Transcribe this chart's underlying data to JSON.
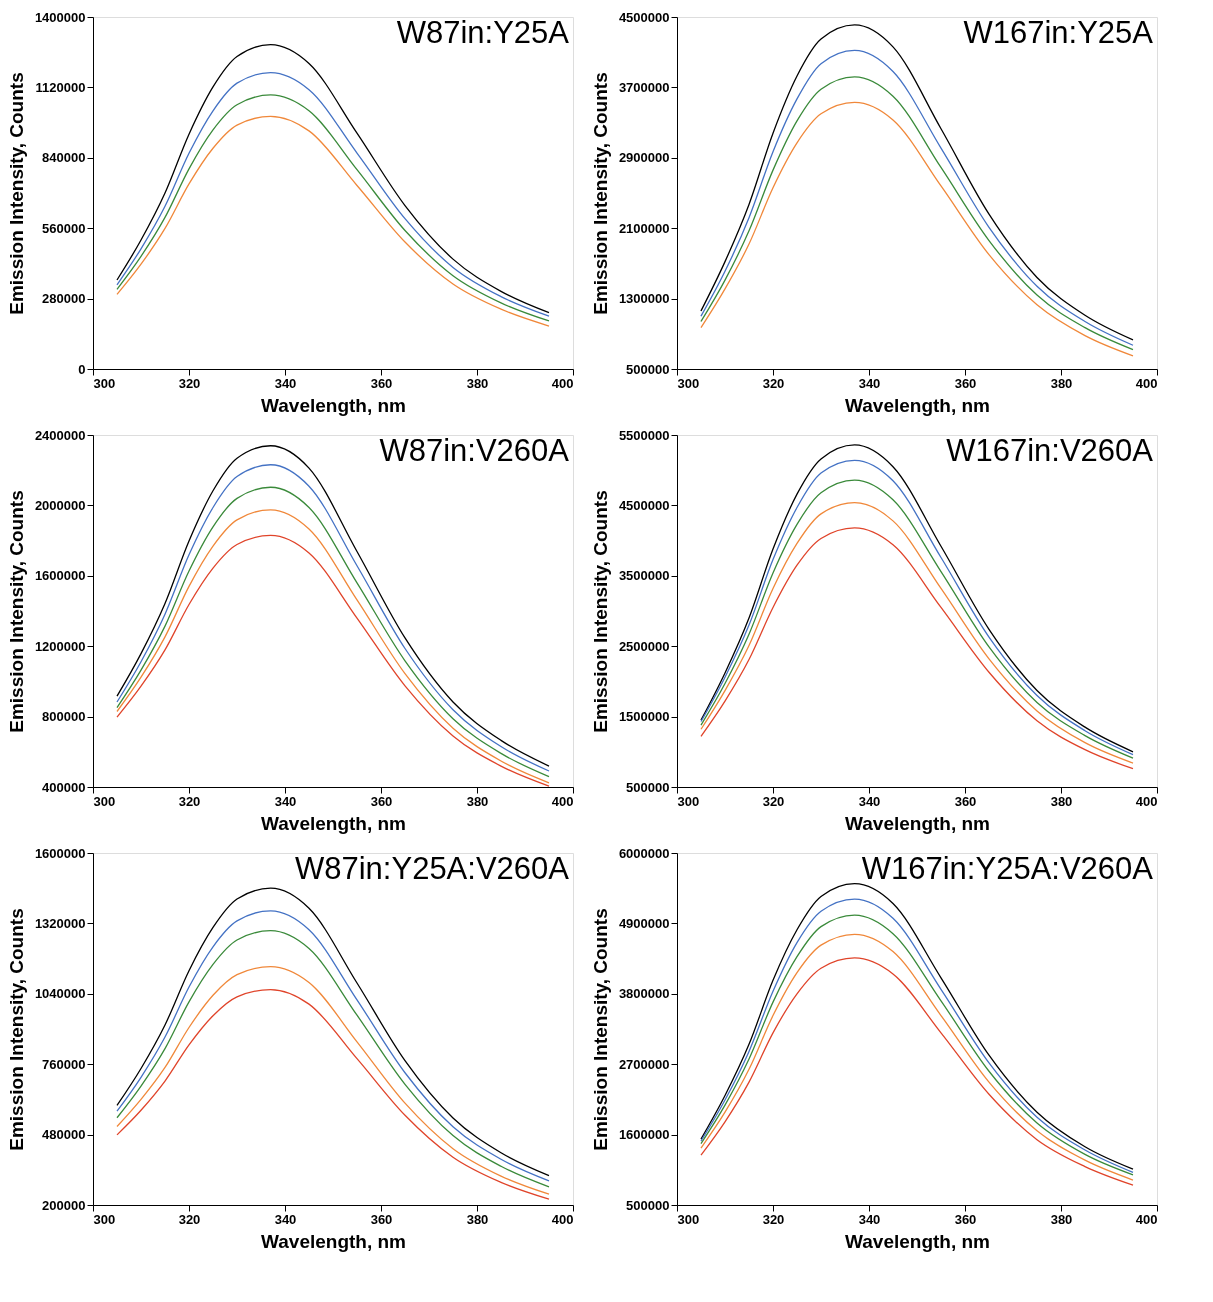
{
  "chart_data": [
    {
      "type": "line",
      "xlabel": "Wavelength, nm",
      "ylabel": "Emission Intensity, Counts",
      "annotations": [
        "W87in:Y25A"
      ],
      "xlim": [
        300,
        400
      ],
      "xticks": [
        300,
        320,
        340,
        360,
        380,
        400
      ],
      "ylim": [
        0,
        1400000
      ],
      "yticks": [
        0,
        280000,
        560000,
        840000,
        1120000,
        1400000
      ],
      "grid": false,
      "line_style": "solid",
      "x": [
        305,
        310,
        315,
        320,
        325,
        330,
        337,
        345,
        355,
        365,
        375,
        385,
        395
      ],
      "series": [
        {
          "color": "#000000",
          "values": [
            354000,
            513000,
            700000,
            934000,
            1122000,
            1243000,
            1290000,
            1215000,
            938000,
            650000,
            437000,
            309000,
            224000
          ]
        },
        {
          "color": "#4472c4",
          "values": [
            335000,
            478000,
            647000,
            858000,
            1027000,
            1137000,
            1179000,
            1111000,
            859000,
            598000,
            404000,
            288000,
            210000
          ]
        },
        {
          "color": "#3a8a3a",
          "values": [
            317000,
            448000,
            603000,
            796000,
            951000,
            1051000,
            1090000,
            1027000,
            793000,
            551000,
            371000,
            263000,
            191000
          ]
        },
        {
          "color": "#f0883a",
          "values": [
            297000,
            417000,
            559000,
            736000,
            878000,
            970000,
            1005000,
            947000,
            730000,
            505000,
            338000,
            238000,
            171000
          ]
        }
      ]
    },
    {
      "type": "line",
      "xlabel": "Wavelength, nm",
      "ylabel": "Emission Intensity, Counts",
      "annotations": [
        "W167in:Y25A"
      ],
      "xlim": [
        300,
        400
      ],
      "xticks": [
        300,
        320,
        340,
        360,
        380,
        400
      ],
      "ylim": [
        500000,
        4500000
      ],
      "yticks": [
        500000,
        1300000,
        2100000,
        2900000,
        3700000,
        4500000
      ],
      "grid": false,
      "line_style": "solid",
      "x": [
        305,
        310,
        315,
        320,
        325,
        330,
        337,
        345,
        355,
        365,
        375,
        385,
        395
      ],
      "series": [
        {
          "color": "#000000",
          "values": [
            1160000,
            1720000,
            2370000,
            3180000,
            3830000,
            4250000,
            4410000,
            4160000,
            3230000,
            2260000,
            1540000,
            1110000,
            830000
          ]
        },
        {
          "color": "#4472c4",
          "values": [
            1100000,
            1610000,
            2220000,
            2970000,
            3570000,
            3970000,
            4120000,
            3880000,
            3010000,
            2110000,
            1440000,
            1040000,
            770000
          ]
        },
        {
          "color": "#3a8a3a",
          "values": [
            1040000,
            1510000,
            2070000,
            2760000,
            3320000,
            3680000,
            3820000,
            3600000,
            2790000,
            1960000,
            1340000,
            970000,
            720000
          ]
        },
        {
          "color": "#f0883a",
          "values": [
            970000,
            1410000,
            1920000,
            2560000,
            3070000,
            3400000,
            3530000,
            3330000,
            2580000,
            1800000,
            1230000,
            880000,
            650000
          ]
        }
      ]
    },
    {
      "type": "line",
      "xlabel": "Wavelength, nm",
      "ylabel": "Emission Intensity, Counts",
      "annotations": [
        "W87in:V260A"
      ],
      "xlim": [
        300,
        400
      ],
      "xticks": [
        300,
        320,
        340,
        360,
        380,
        400
      ],
      "ylim": [
        400000,
        2400000
      ],
      "yticks": [
        400000,
        800000,
        1200000,
        1600000,
        2000000,
        2400000
      ],
      "grid": false,
      "line_style": "solid",
      "x": [
        305,
        310,
        315,
        320,
        325,
        330,
        337,
        345,
        355,
        365,
        375,
        385,
        395
      ],
      "series": [
        {
          "color": "#000000",
          "values": [
            916000,
            1158000,
            1443000,
            1798000,
            2083000,
            2268000,
            2339000,
            2212000,
            1738000,
            1247000,
            883000,
            665000,
            519000
          ]
        },
        {
          "color": "#4472c4",
          "values": [
            883000,
            1112000,
            1382000,
            1719000,
            1988000,
            2164000,
            2231000,
            2109000,
            1657000,
            1187000,
            839000,
            630000,
            491000
          ]
        },
        {
          "color": "#3a8a3a",
          "values": [
            851000,
            1064000,
            1314000,
            1627000,
            1878000,
            2040000,
            2103000,
            1988000,
            1560000,
            1117000,
            788000,
            591000,
            459000
          ]
        },
        {
          "color": "#f0883a",
          "values": [
            829000,
            1024000,
            1253000,
            1540000,
            1769000,
            1918000,
            1975000,
            1866000,
            1463000,
            1044000,
            734000,
            548000,
            424000
          ]
        },
        {
          "color": "#e0442a",
          "values": [
            797000,
            973000,
            1179000,
            1437000,
            1644000,
            1778000,
            1830000,
            1730000,
            1360000,
            975000,
            690000,
            519000,
            405000
          ]
        }
      ]
    },
    {
      "type": "line",
      "xlabel": "Wavelength, nm",
      "ylabel": "Emission Intensity, Counts",
      "annotations": [
        "W167in:V260A"
      ],
      "xlim": [
        300,
        400
      ],
      "xticks": [
        300,
        320,
        340,
        360,
        380,
        400
      ],
      "ylim": [
        500000,
        5500000
      ],
      "yticks": [
        500000,
        1500000,
        2500000,
        3500000,
        4500000,
        5500000
      ],
      "grid": false,
      "line_style": "solid",
      "x": [
        305,
        310,
        315,
        320,
        325,
        330,
        337,
        345,
        355,
        365,
        375,
        385,
        395
      ],
      "series": [
        {
          "color": "#000000",
          "values": [
            1450000,
            2120000,
            2900000,
            3880000,
            4660000,
            5160000,
            5360000,
            5050000,
            3920000,
            2740000,
            1870000,
            1350000,
            1000000
          ]
        },
        {
          "color": "#4472c4",
          "values": [
            1430000,
            2060000,
            2800000,
            3730000,
            4470000,
            4960000,
            5140000,
            4850000,
            3760000,
            2630000,
            1800000,
            1300000,
            960000
          ]
        },
        {
          "color": "#3a8a3a",
          "values": [
            1380000,
            1970000,
            2670000,
            3540000,
            4230000,
            4680000,
            4860000,
            4580000,
            3560000,
            2490000,
            1700000,
            1230000,
            910000
          ]
        },
        {
          "color": "#f0883a",
          "values": [
            1320000,
            1870000,
            2510000,
            3320000,
            3960000,
            4380000,
            4540000,
            4280000,
            3320000,
            2320000,
            1580000,
            1130000,
            840000
          ]
        },
        {
          "color": "#e0442a",
          "values": [
            1220000,
            1720000,
            2310000,
            3050000,
            3650000,
            4030000,
            4180000,
            3940000,
            3050000,
            2130000,
            1440000,
            1030000,
            760000
          ]
        }
      ]
    },
    {
      "type": "line",
      "xlabel": "Wavelength, nm",
      "ylabel": "Emission Intensity, Counts",
      "annotations": [
        "W87in:Y25A:V260A"
      ],
      "xlim": [
        300,
        400
      ],
      "xticks": [
        300,
        320,
        340,
        360,
        380,
        400
      ],
      "ylim": [
        200000,
        1600000
      ],
      "yticks": [
        200000,
        480000,
        760000,
        1040000,
        1320000,
        1600000
      ],
      "grid": false,
      "line_style": "solid",
      "x": [
        305,
        310,
        315,
        320,
        325,
        330,
        337,
        345,
        355,
        365,
        375,
        385,
        395
      ],
      "series": [
        {
          "color": "#000000",
          "values": [
            596000,
            743000,
            916000,
            1132000,
            1304000,
            1417000,
            1460000,
            1380000,
            1083000,
            774000,
            546000,
            408000,
            317000
          ]
        },
        {
          "color": "#4472c4",
          "values": [
            573000,
            708000,
            868000,
            1067000,
            1227000,
            1330000,
            1370000,
            1295000,
            1016000,
            726000,
            511000,
            382000,
            296000
          ]
        },
        {
          "color": "#3a8a3a",
          "values": [
            547000,
            673000,
            822000,
            1008000,
            1157000,
            1254000,
            1291000,
            1220000,
            955000,
            680000,
            476000,
            354000,
            272000
          ]
        },
        {
          "color": "#f0883a",
          "values": [
            512000,
            620000,
            747000,
            906000,
            1034000,
            1116000,
            1148000,
            1085000,
            849000,
            605000,
            424000,
            315000,
            243000
          ]
        },
        {
          "color": "#e0442a",
          "values": [
            479000,
            577000,
            693000,
            837000,
            953000,
            1028000,
            1057000,
            999000,
            782000,
            557000,
            390000,
            290000,
            223000
          ]
        }
      ]
    },
    {
      "type": "line",
      "xlabel": "Wavelength, nm",
      "ylabel": "Emission Intensity, Counts",
      "annotations": [
        "W167in:Y25A:V260A"
      ],
      "xlim": [
        300,
        400
      ],
      "xticks": [
        300,
        320,
        340,
        360,
        380,
        400
      ],
      "ylim": [
        500000,
        6000000
      ],
      "yticks": [
        500000,
        1600000,
        2700000,
        3800000,
        4900000,
        6000000
      ],
      "grid": false,
      "line_style": "solid",
      "x": [
        305,
        310,
        315,
        320,
        325,
        330,
        337,
        345,
        355,
        365,
        375,
        385,
        395
      ],
      "series": [
        {
          "color": "#000000",
          "values": [
            1530000,
            2210000,
            3010000,
            4010000,
            4800000,
            5320000,
            5520000,
            5210000,
            4050000,
            2840000,
            1950000,
            1410000,
            1060000
          ]
        },
        {
          "color": "#4472c4",
          "values": [
            1500000,
            2140000,
            2900000,
            3840000,
            4600000,
            5090000,
            5280000,
            4980000,
            3870000,
            2720000,
            1870000,
            1360000,
            1010000
          ]
        },
        {
          "color": "#3a8a3a",
          "values": [
            1460000,
            2060000,
            2780000,
            3670000,
            4380000,
            4850000,
            5030000,
            4740000,
            3690000,
            2590000,
            1780000,
            1290000,
            970000
          ]
        },
        {
          "color": "#f0883a",
          "values": [
            1390000,
            1950000,
            2620000,
            3460000,
            4130000,
            4560000,
            4730000,
            4460000,
            3460000,
            2420000,
            1660000,
            1200000,
            890000
          ]
        },
        {
          "color": "#e0442a",
          "values": [
            1280000,
            1800000,
            2420000,
            3190000,
            3800000,
            4200000,
            4360000,
            4110000,
            3190000,
            2230000,
            1520000,
            1100000,
            810000
          ]
        }
      ]
    }
  ]
}
